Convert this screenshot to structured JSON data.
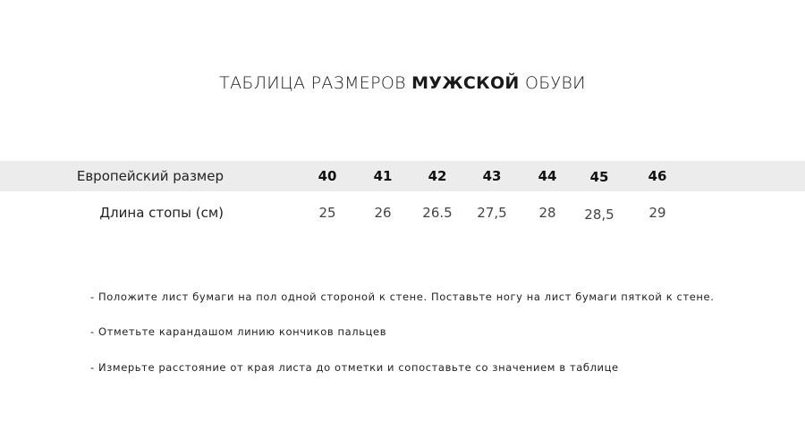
{
  "title": {
    "prefix": "ТАБЛИЦА РАЗМЕРОВ ",
    "bold": "МУЖСКОЙ",
    "suffix": " ОБУВИ"
  },
  "table": {
    "rows": [
      {
        "label": "Европейский размер",
        "values": [
          "40",
          "41",
          "42",
          "43",
          "44",
          "45",
          "46"
        ]
      },
      {
        "label": "Длина стопы (см)",
        "values": [
          "25",
          "26",
          "26.5",
          "27,5",
          "28",
          "28,5",
          "29"
        ]
      }
    ]
  },
  "instructions": [
    "- Положите лист бумаги на пол одной стороной к стене. Поставьте ногу на лист бумаги пяткой к стене.",
    "- Отметьте карандашом линию кончиков пальцев",
    "- Измерьте расстояние от края листа до отметки и сопоставьте со значением в таблице"
  ],
  "colors": {
    "band": "#ececec",
    "text": "#222222"
  }
}
